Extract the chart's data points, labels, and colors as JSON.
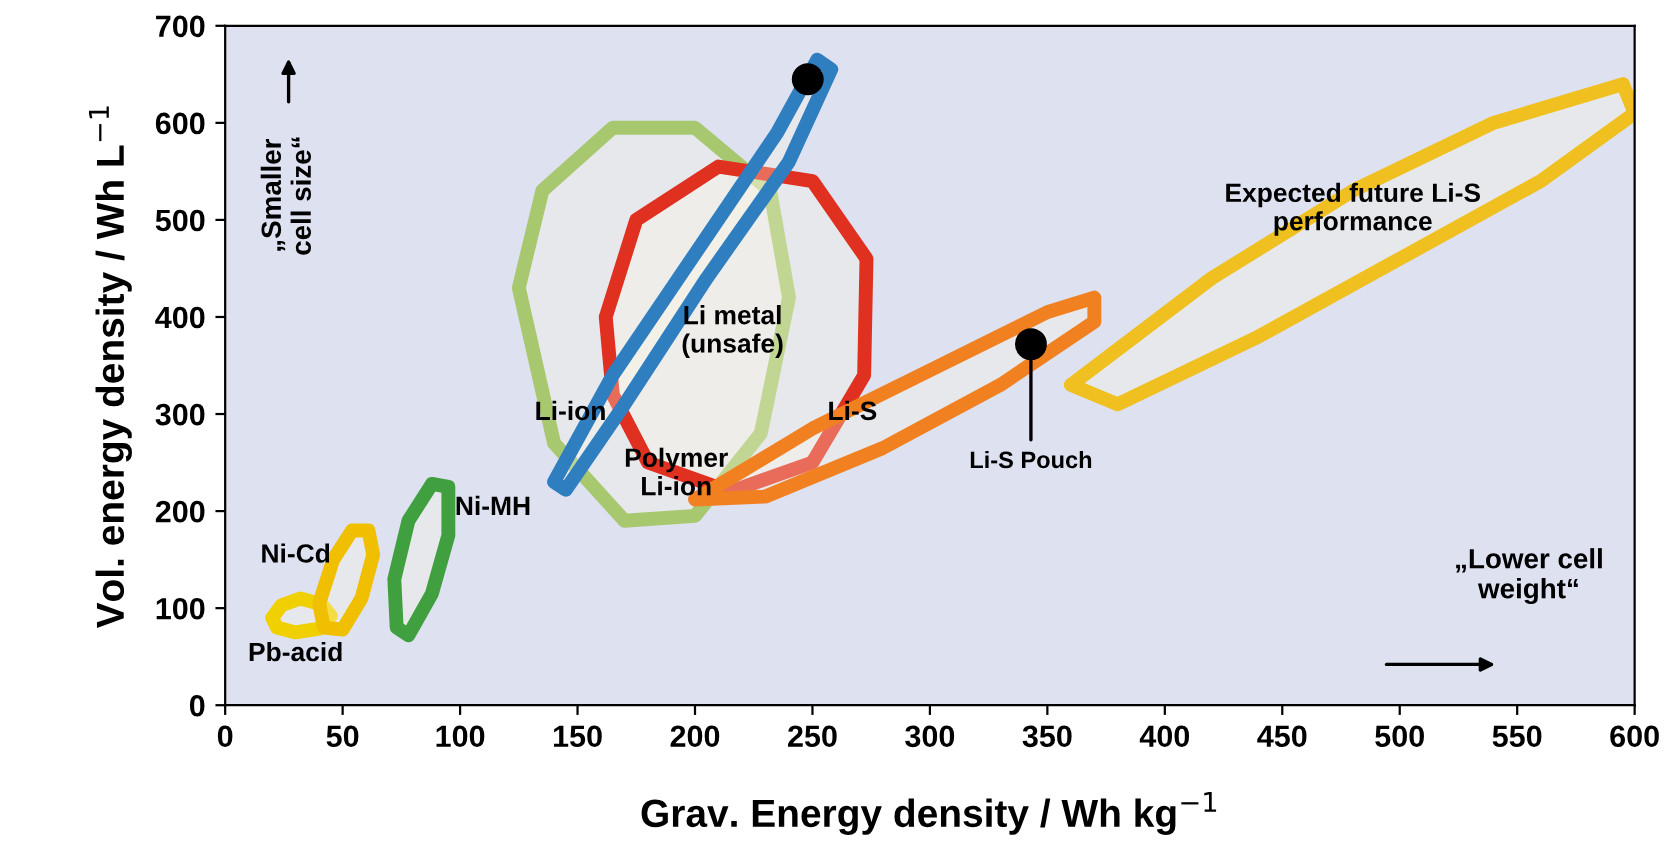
{
  "chart_data": {
    "type": "area",
    "xlabel": "Grav. Energy density / Wh kg$^{−1}$",
    "ylabel": "Vol. energy density / Wh L$^{−1}$",
    "xlim": [
      0,
      600
    ],
    "ylim": [
      0,
      700
    ],
    "xticks": [
      0,
      50,
      100,
      150,
      200,
      250,
      300,
      350,
      400,
      450,
      500,
      550,
      600
    ],
    "yticks": [
      0,
      100,
      200,
      300,
      400,
      500,
      600,
      700
    ],
    "grid": false,
    "series": [
      {
        "name": "Pb-acid",
        "color": "#f0d000",
        "x": [
          20,
          24,
          32,
          41,
          45,
          40,
          30,
          22
        ],
        "values": [
          90,
          103,
          110,
          104,
          92,
          79,
          75,
          80
        ]
      },
      {
        "name": "Ni-Cd",
        "color": "#f0c000",
        "x": [
          40,
          46,
          54,
          61,
          63,
          58,
          50,
          42
        ],
        "values": [
          105,
          150,
          180,
          180,
          155,
          110,
          78,
          80
        ]
      },
      {
        "name": "Ni-MH",
        "color": "#40a040",
        "x": [
          72,
          78,
          88,
          95,
          95,
          88,
          78,
          73
        ],
        "values": [
          130,
          190,
          228,
          225,
          175,
          115,
          72,
          80
        ]
      },
      {
        "name": "Polymer\nLi-ion",
        "color": "#a8c870",
        "x": [
          125,
          135,
          165,
          200,
          232,
          240,
          228,
          200,
          170,
          140
        ],
        "values": [
          430,
          530,
          595,
          595,
          530,
          420,
          280,
          195,
          190,
          270
        ]
      },
      {
        "name": "Li metal\n(unsafe)",
        "color": "#e03020",
        "x": [
          162,
          175,
          210,
          250,
          273,
          272,
          250,
          215,
          180,
          165
        ],
        "values": [
          400,
          500,
          555,
          540,
          460,
          340,
          250,
          220,
          250,
          320
        ]
      },
      {
        "name": "Li-ion",
        "color": "#2f7fc0",
        "x": [
          140,
          165,
          200,
          235,
          252,
          258,
          240,
          205,
          170,
          145
        ],
        "values": [
          230,
          340,
          465,
          590,
          665,
          655,
          560,
          440,
          310,
          222
        ]
      },
      {
        "name": "Li-S",
        "color": "#f08020",
        "x": [
          200,
          250,
          300,
          350,
          370,
          370,
          330,
          280,
          230
        ],
        "values": [
          212,
          285,
          345,
          405,
          420,
          395,
          330,
          265,
          215
        ]
      },
      {
        "name": "Expected future Li-S\nperformance",
        "color": "#f0c020",
        "x": [
          360,
          420,
          480,
          540,
          595,
          600,
          560,
          500,
          440,
          380
        ],
        "values": [
          330,
          440,
          530,
          600,
          640,
          610,
          540,
          460,
          380,
          310
        ]
      },
      {
        "type": "scatter",
        "color": "#000000",
        "x": [
          248,
          343
        ],
        "values": [
          645,
          372
        ]
      }
    ],
    "annotations": [
      {
        "text": "Li-S Pouch",
        "x": 343,
        "y": 372
      },
      "„Smaller\ncell size“",
      "„Lower cell\nweight“"
    ]
  }
}
